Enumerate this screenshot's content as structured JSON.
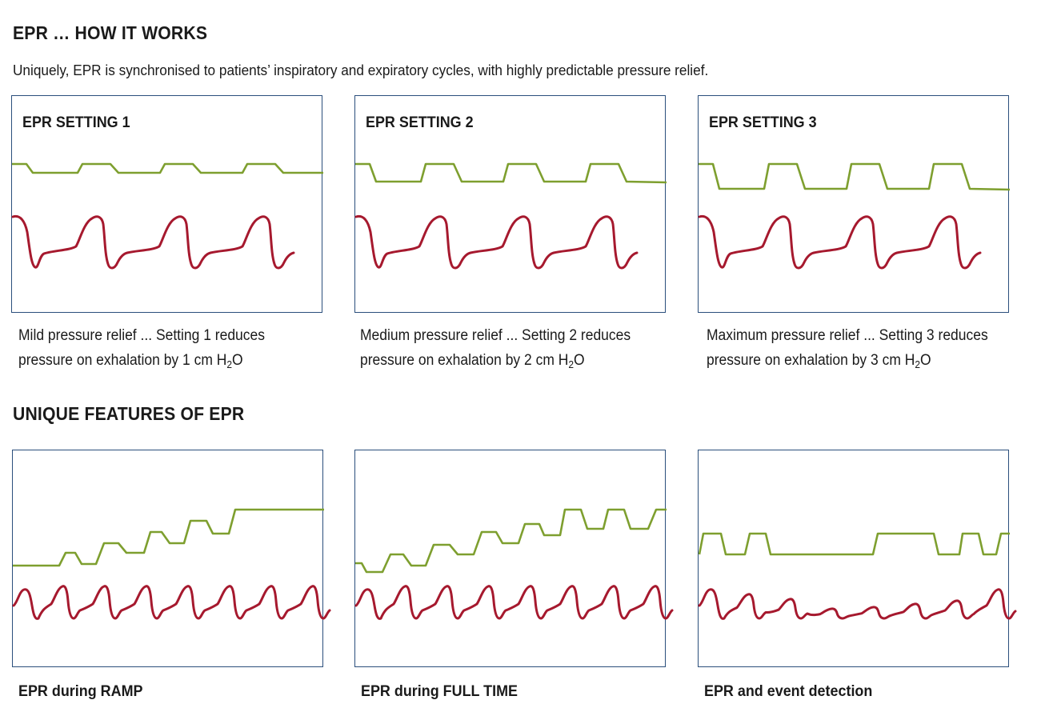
{
  "section1": {
    "title": "EPR … HOW IT WORKS",
    "intro": "Uniquely, EPR is synchronised to patients’ inspiratory and expiratory cycles, with highly predictable pressure relief."
  },
  "settings": [
    {
      "title": "EPR SETTING 1",
      "caption_line1": "Mild pressure relief ... Setting 1 reduces",
      "caption_line2_pre": "pressure on exhalation by 1 cm H",
      "caption_sub": "2",
      "caption_line2_post": "O",
      "relief_cm_h2o": 1
    },
    {
      "title": "EPR SETTING 2",
      "caption_line1": "Medium pressure relief ... Setting 2 reduces",
      "caption_line2_pre": "pressure on exhalation by 2 cm H",
      "caption_sub": "2",
      "caption_line2_post": "O",
      "relief_cm_h2o": 2
    },
    {
      "title": "EPR SETTING 3",
      "caption_line1": "Maximum pressure relief ... Setting 3 reduces",
      "caption_line2_pre": "pressure on exhalation by 3 cm H",
      "caption_sub": "2",
      "caption_line2_post": "O",
      "relief_cm_h2o": 3
    }
  ],
  "section2": {
    "title": "UNIQUE FEATURES OF EPR"
  },
  "features": [
    {
      "label": "EPR during RAMP"
    },
    {
      "label": "EPR during FULL TIME"
    },
    {
      "label": "EPR and event detection"
    }
  ],
  "colors": {
    "pressure_trace": "#7e9f2f",
    "flow_trace": "#a6192e",
    "panel_border": "#2b4f7c"
  }
}
